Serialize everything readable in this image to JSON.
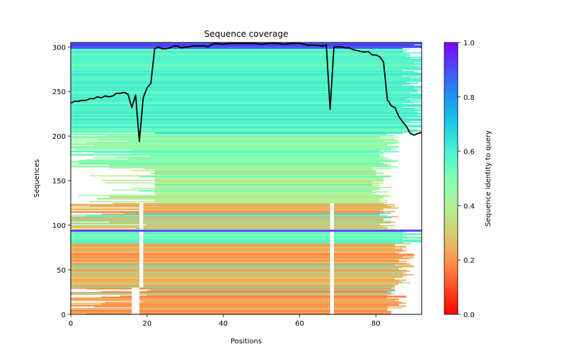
{
  "chart_data": {
    "type": "heatmap",
    "title": "Sequence coverage",
    "xlabel": "Positions",
    "ylabel": "Sequences",
    "xlim": [
      0,
      92
    ],
    "ylim": [
      0,
      305
    ],
    "xticks": [
      0,
      20,
      40,
      60,
      80
    ],
    "yticks": [
      0,
      50,
      100,
      150,
      200,
      250,
      300
    ],
    "colorbar": {
      "label": "Sequence identity to query",
      "colormap": "rainbow",
      "range": [
        0.0,
        1.0
      ],
      "ticks": [
        "0.0",
        "0.2",
        "0.4",
        "0.6",
        "0.8",
        "1.0"
      ]
    },
    "row_bands": [
      {
        "from": 0,
        "to": 30,
        "identity": 0.22,
        "start": 0,
        "end": 88,
        "gaps": [
          [
            16,
            18
          ],
          [
            68,
            69
          ]
        ],
        "left_sparse_until": 22
      },
      {
        "from": 30,
        "to": 55,
        "identity": 0.26,
        "start": 0,
        "end": 90,
        "gaps": [
          [
            18,
            19
          ],
          [
            68,
            69
          ]
        ],
        "left_sparse_until": 0
      },
      {
        "from": 55,
        "to": 80,
        "identity": 0.22,
        "start": 0,
        "end": 90,
        "gaps": [
          [
            18,
            19
          ],
          [
            68,
            69
          ]
        ],
        "left_sparse_until": 0
      },
      {
        "from": 80,
        "to": 93,
        "identity": 0.55,
        "start": 0,
        "end": 92,
        "gaps": [
          [
            18,
            19
          ],
          [
            68,
            69
          ]
        ],
        "left_sparse_until": 0
      },
      {
        "from": 93,
        "to": 95,
        "identity": 0.95,
        "start": 0,
        "end": 92,
        "gaps": [],
        "left_sparse_until": 0
      },
      {
        "from": 95,
        "to": 125,
        "identity": 0.24,
        "start": 0,
        "end": 86,
        "gaps": [
          [
            18,
            19
          ],
          [
            68,
            69
          ]
        ],
        "left_sparse_until": 22
      },
      {
        "from": 125,
        "to": 165,
        "identity": 0.4,
        "start": 22,
        "end": 84,
        "gaps": [],
        "left_sparse_until": 22
      },
      {
        "from": 165,
        "to": 203,
        "identity": 0.48,
        "start": 0,
        "end": 86,
        "gaps": [],
        "left_sparse_until": 22
      },
      {
        "from": 203,
        "to": 204,
        "identity": 0.75,
        "start": 22,
        "end": 92,
        "gaps": [],
        "left_sparse_until": 0
      },
      {
        "from": 204,
        "to": 298,
        "identity": 0.58,
        "start": 0,
        "end": 92,
        "gaps": [],
        "left_sparse_until": 0
      },
      {
        "from": 298,
        "to": 305,
        "identity": 0.9,
        "start": 0,
        "end": 92,
        "gaps": [],
        "left_sparse_until": 0
      }
    ],
    "coverage_line": {
      "color": "#000000",
      "x": [
        0,
        1,
        2,
        3,
        4,
        5,
        6,
        7,
        8,
        9,
        10,
        11,
        12,
        13,
        14,
        15,
        16,
        17,
        18,
        19,
        20,
        21,
        22,
        23,
        24,
        25,
        26,
        27,
        28,
        29,
        30,
        31,
        32,
        33,
        34,
        35,
        36,
        37,
        38,
        40,
        42,
        44,
        46,
        48,
        50,
        52,
        54,
        56,
        58,
        60,
        62,
        64,
        66,
        67,
        68,
        69,
        70,
        71,
        72,
        73,
        74,
        75,
        76,
        77,
        78,
        79,
        80,
        81,
        82,
        83,
        84,
        85,
        86,
        87,
        88,
        89,
        90,
        91,
        92
      ],
      "y": [
        237,
        239,
        239,
        240,
        240,
        242,
        242,
        244,
        243,
        245,
        244,
        245,
        248,
        248,
        249,
        247,
        232,
        246,
        194,
        243,
        254,
        259,
        298,
        300,
        298,
        298,
        299,
        301,
        301,
        299,
        300,
        300,
        301,
        301,
        301,
        301,
        300,
        303,
        304,
        303,
        304,
        304,
        304,
        304,
        303,
        304,
        304,
        303,
        304,
        304,
        302,
        302,
        301,
        302,
        230,
        300,
        300,
        300,
        299,
        299,
        297,
        296,
        295,
        294,
        295,
        291,
        291,
        289,
        283,
        241,
        234,
        232,
        222,
        216,
        211,
        203,
        201,
        203,
        204
      ]
    }
  }
}
